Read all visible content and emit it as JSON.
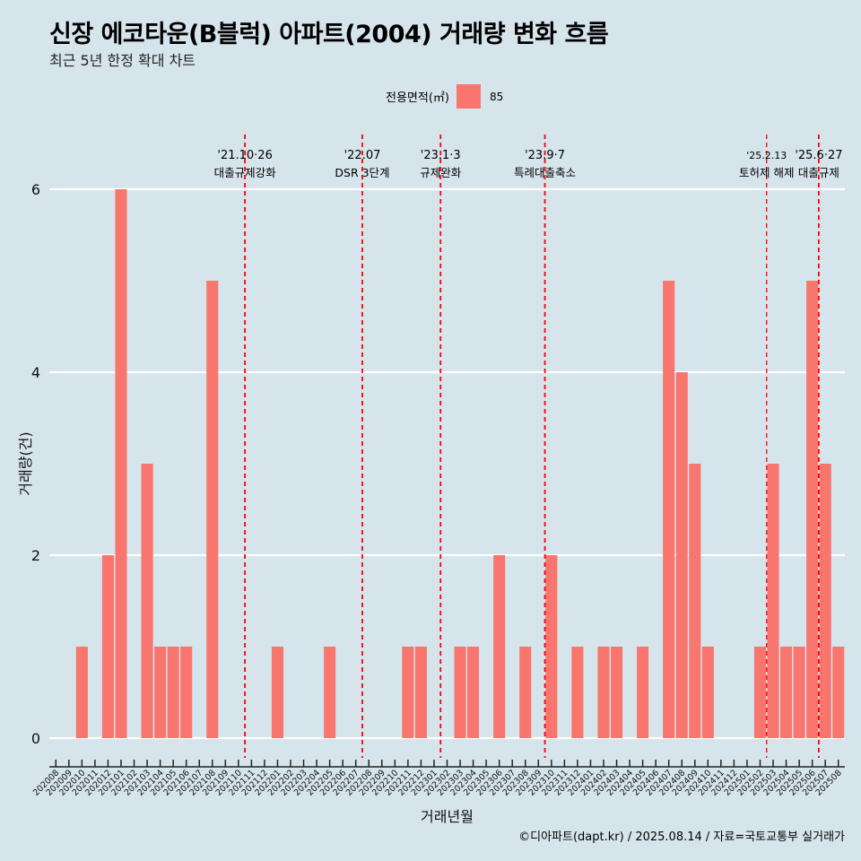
{
  "title": "신장 에코타운(B블럭) 아파트(2004) 거래량 변화 흐름",
  "subtitle": "최근 5년 한정 확대 차트",
  "caption": "©디아파트(dapt.kr) / 2025.08.14 / 자료=국토교통부 실거래가",
  "colors": {
    "bar": "#f8766d",
    "background": "#d6e4ec",
    "grid": "#ffffff",
    "event_line": "#ff0000"
  },
  "legend": {
    "title": "전용면적(㎡)",
    "items": [
      {
        "label": "85",
        "color": "#f8766d"
      }
    ],
    "position": "top-center"
  },
  "chart_data": {
    "type": "bar",
    "xlabel": "거래년월",
    "ylabel": "거래량(건)",
    "ylim": [
      0,
      6
    ],
    "yticks": [
      0,
      2,
      4,
      6
    ],
    "grid": true,
    "categories": [
      "202008",
      "202009",
      "202010",
      "202011",
      "202012",
      "202101",
      "202102",
      "202103",
      "202104",
      "202105",
      "202106",
      "202107",
      "202108",
      "202109",
      "202110",
      "202111",
      "202112",
      "202201",
      "202202",
      "202203",
      "202204",
      "202205",
      "202206",
      "202207",
      "202208",
      "202209",
      "202210",
      "202211",
      "202212",
      "202301",
      "202302",
      "202303",
      "202304",
      "202305",
      "202306",
      "202307",
      "202308",
      "202309",
      "202310",
      "202311",
      "202312",
      "202401",
      "202402",
      "202403",
      "202404",
      "202405",
      "202406",
      "202407",
      "202408",
      "202409",
      "202410",
      "202411",
      "202412",
      "202501",
      "202502",
      "202503",
      "202504",
      "202505",
      "202506",
      "202507",
      "202508"
    ],
    "series": [
      {
        "name": "85",
        "values": [
          0,
          0,
          1,
          0,
          2,
          6,
          0,
          3,
          1,
          1,
          1,
          0,
          5,
          0,
          0,
          0,
          0,
          1,
          0,
          0,
          0,
          1,
          0,
          0,
          0,
          0,
          0,
          1,
          1,
          0,
          0,
          1,
          1,
          0,
          2,
          0,
          1,
          0,
          2,
          0,
          1,
          0,
          1,
          1,
          0,
          1,
          0,
          5,
          4,
          3,
          1,
          0,
          0,
          0,
          1,
          3,
          1,
          1,
          5,
          3,
          1
        ]
      }
    ],
    "events": [
      {
        "date": "'21.10·26",
        "label": "대출규제강화",
        "position": 14.5
      },
      {
        "date": "'22.07",
        "label": "DSR 3단계",
        "position": 23.5
      },
      {
        "date": "'23.1·3",
        "label": "규제완화",
        "position": 29.5
      },
      {
        "date": "'23.9·7",
        "label": "특례대출축소",
        "position": 37.5
      },
      {
        "date": "'25.2.13",
        "label": "토허제 해제",
        "position": 54.5
      },
      {
        "date": "'25.6·27",
        "label": "대출규제",
        "position": 58.5
      }
    ]
  }
}
